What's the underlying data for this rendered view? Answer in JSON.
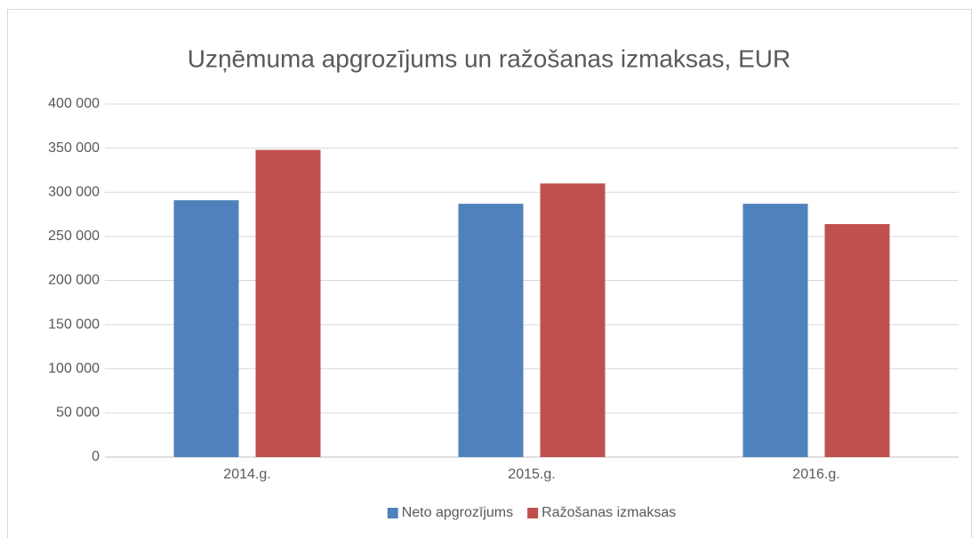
{
  "chart_data": {
    "type": "bar",
    "title": "Uzņēmuma apgrozījums un ražošanas izmaksas, EUR",
    "categories": [
      "2014.g.",
      "2015.g.",
      "2016.g."
    ],
    "series": [
      {
        "name": "Neto apgrozījums",
        "color": "#4f81bd",
        "values": [
          291000,
          287000,
          287000
        ]
      },
      {
        "name": "Ražošanas izmaksas",
        "color": "#c0504d",
        "values": [
          348000,
          310000,
          264000
        ]
      }
    ],
    "ylim": [
      0,
      400000
    ],
    "yticks": [
      0,
      {
        "value": 50000,
        "label": "50 000"
      },
      {
        "value": 100000,
        "label": "100 000"
      },
      {
        "value": 150000,
        "label": "150 000"
      },
      {
        "value": 200000,
        "label": "200 000"
      },
      {
        "value": 250000,
        "label": "250 000"
      },
      {
        "value": 300000,
        "label": "300 000"
      },
      {
        "value": 350000,
        "label": "350 000"
      },
      {
        "value": 400000,
        "label": "400 000"
      }
    ],
    "grid": true,
    "legend": "bottom"
  }
}
